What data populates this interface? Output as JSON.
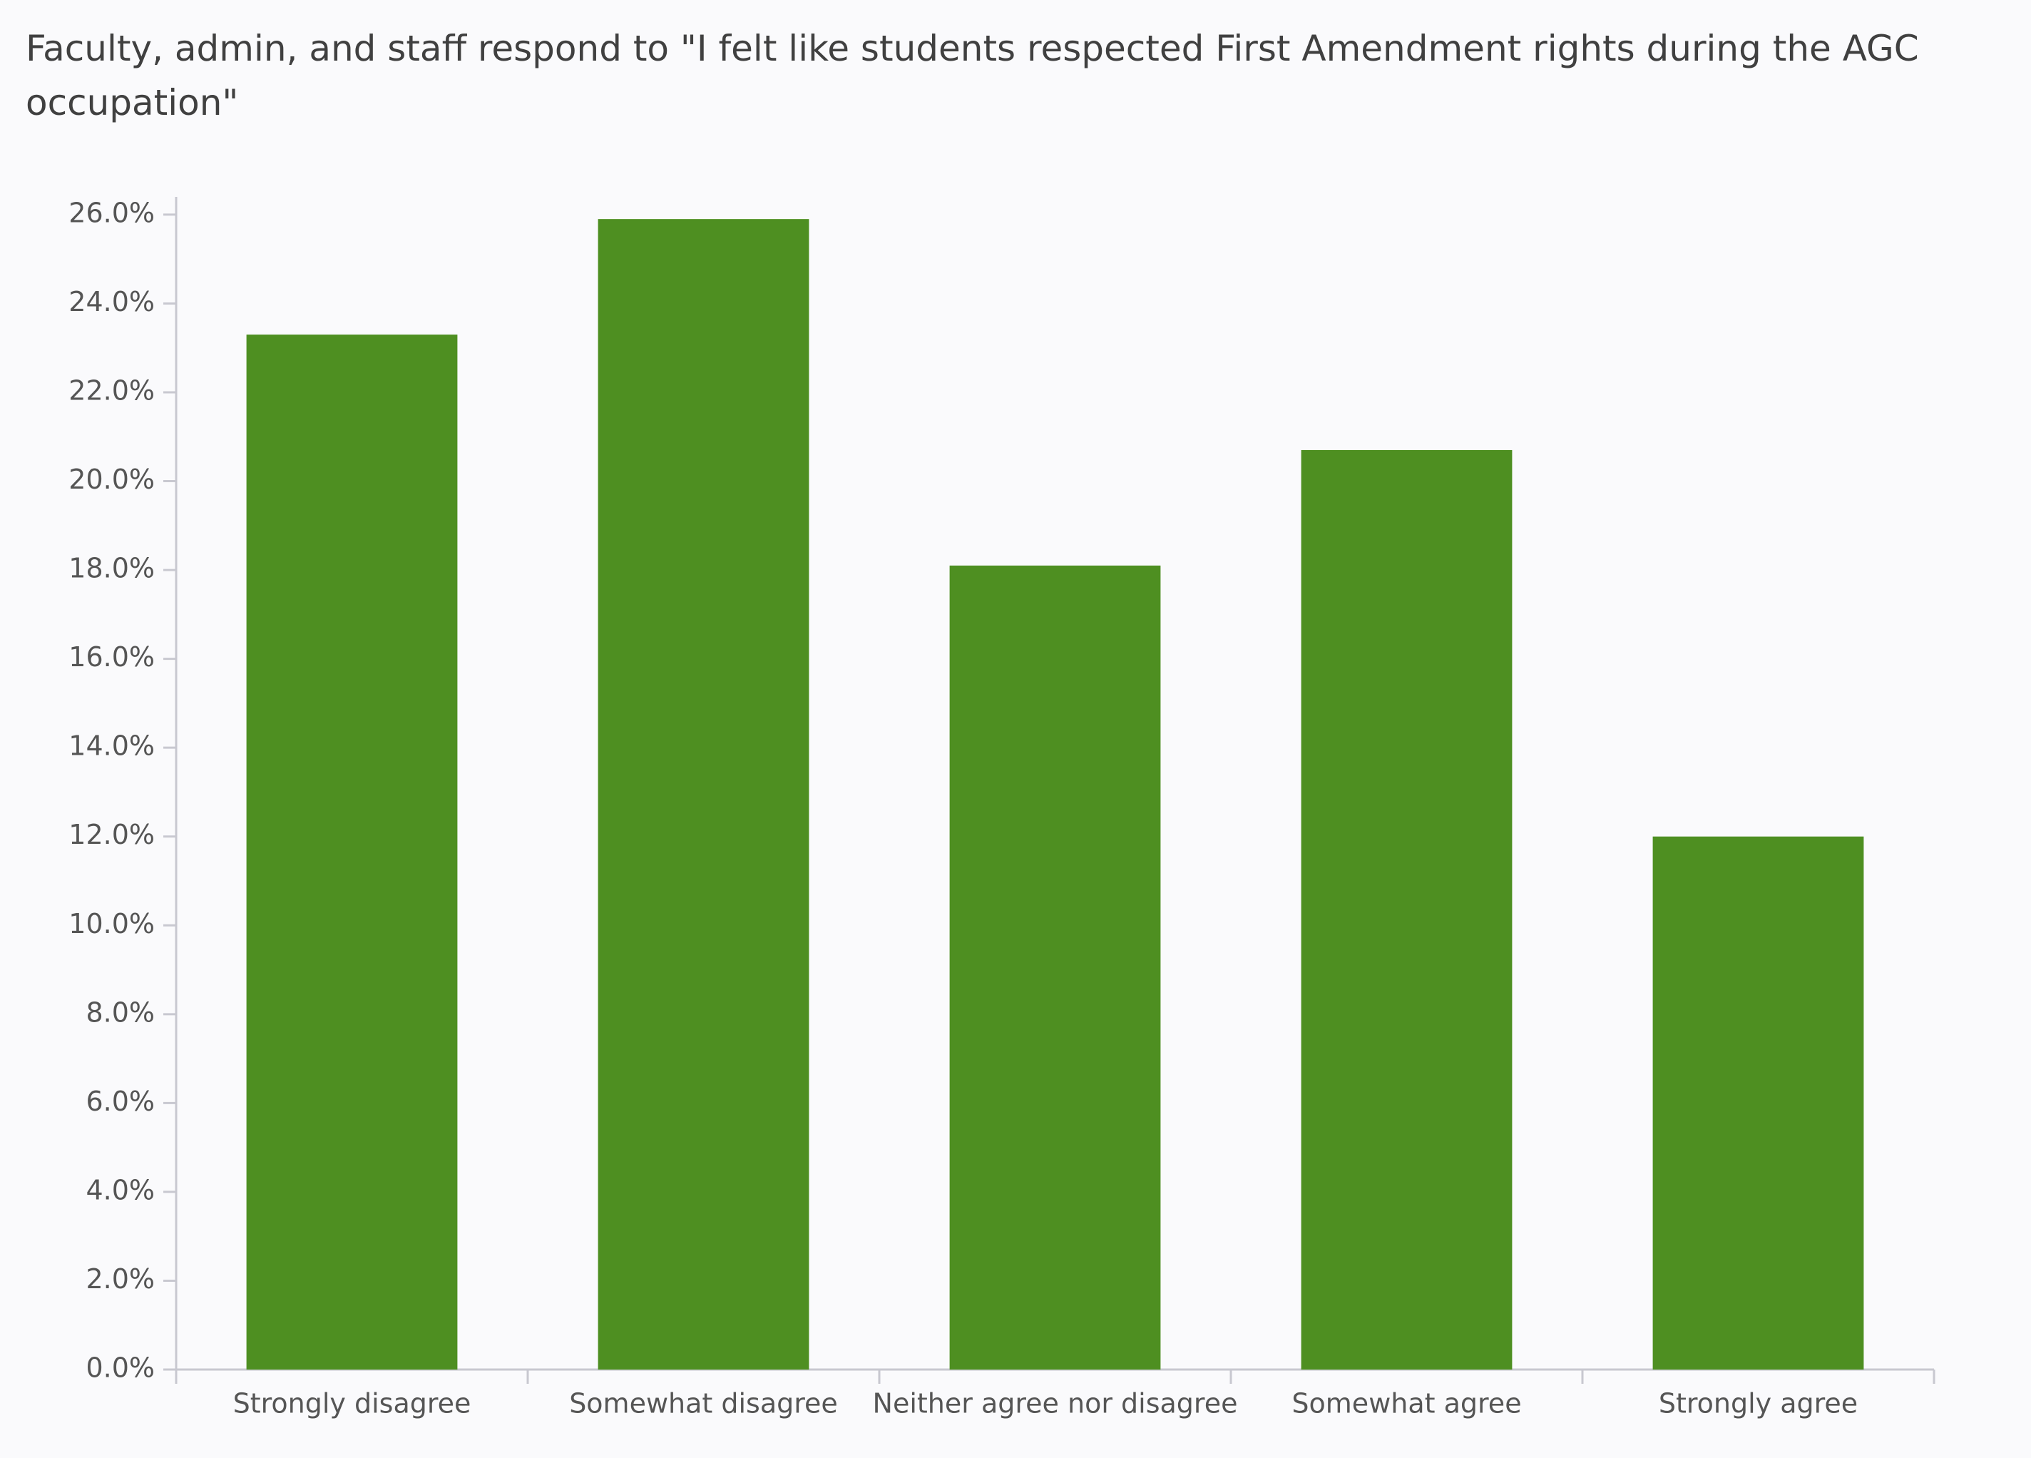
{
  "chart_data": {
    "type": "bar",
    "title": "Faculty, admin, and staff respond to \"I felt like students respected First Amendment rights during the AGC occupation\"",
    "categories": [
      "Strongly disagree",
      "Somewhat disagree",
      "Neither agree nor disagree",
      "Somewhat agree",
      "Strongly agree"
    ],
    "values": [
      23.3,
      25.9,
      18.1,
      20.7,
      12.0
    ],
    "color": "#4e8f21",
    "ylim": [
      0,
      26.4
    ],
    "yticks": [
      {
        "value": 0,
        "label": "0.0%"
      },
      {
        "value": 2,
        "label": "2.0%"
      },
      {
        "value": 4,
        "label": "4.0%"
      },
      {
        "value": 6,
        "label": "6.0%"
      },
      {
        "value": 8,
        "label": "8.0%"
      },
      {
        "value": 10,
        "label": "10.0%"
      },
      {
        "value": 12,
        "label": "12.0%"
      },
      {
        "value": 14,
        "label": "14.0%"
      },
      {
        "value": 16,
        "label": "16.0%"
      },
      {
        "value": 18,
        "label": "18.0%"
      },
      {
        "value": 20,
        "label": "20.0%"
      },
      {
        "value": 22,
        "label": "22.0%"
      },
      {
        "value": 24,
        "label": "24.0%"
      },
      {
        "value": 26,
        "label": "26.0%"
      }
    ],
    "grid": false
  }
}
